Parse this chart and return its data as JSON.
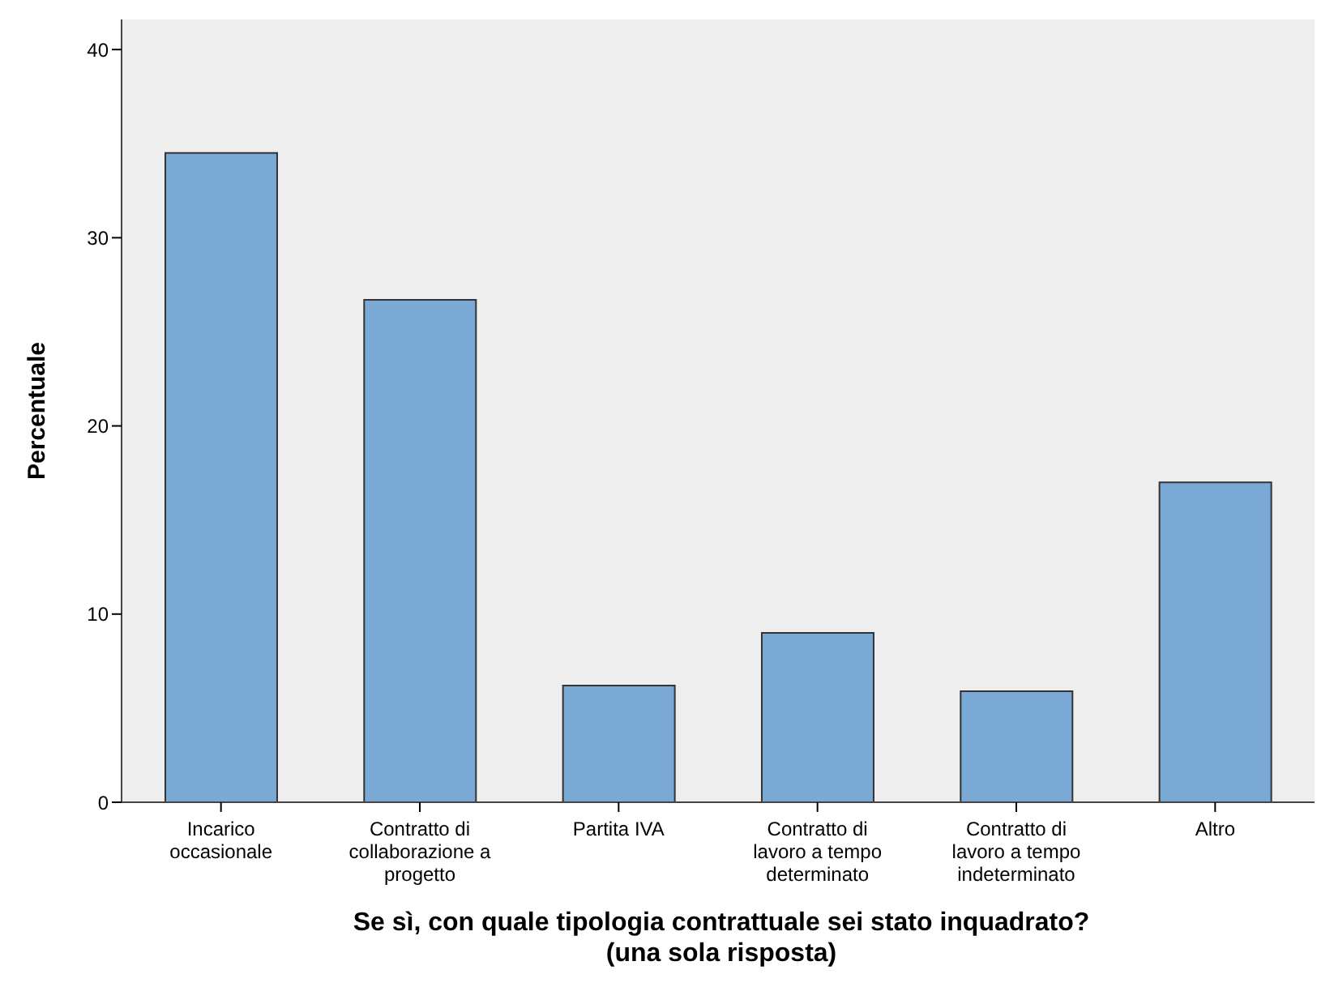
{
  "chart_data": {
    "type": "bar",
    "xlabel": "Se sì, con quale tipologia contrattuale sei stato inquadrato? (una sola risposta)",
    "ylabel": "Percentuale",
    "categories": [
      "Incarico occasionale",
      "Contratto di collaborazione a progetto",
      "Partita IVA",
      "Contratto di lavoro a tempo determinato",
      "Contratto di lavoro a tempo indeterminato",
      "Altro"
    ],
    "values": [
      34.5,
      26.7,
      6.2,
      9.0,
      5.9,
      17.0
    ],
    "color": "#7ba9d6",
    "ylim": [
      0,
      41.6
    ],
    "yticks": [
      0,
      10,
      20,
      30,
      40
    ],
    "grid": false
  }
}
